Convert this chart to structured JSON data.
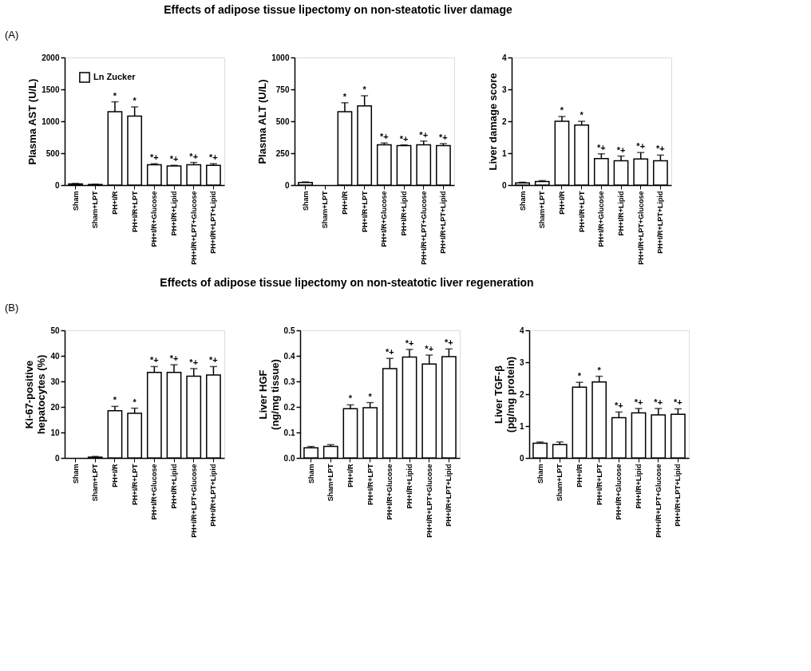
{
  "chart_data": [
    {
      "type": "bar",
      "title": "Effects of adipose tissue lipectomy on non-steatotic liver damage",
      "annotations": [
        "(A)"
      ],
      "ylabel": "Plasma AST (U/L)",
      "categories": [
        "Sham",
        "Sham+LPT",
        "PH+I/R",
        "PH+I/R+LPT",
        "PH+I/R+Glucose",
        "PH+I/R+Lipid",
        "PH+I/R+LPT+Glucose",
        "PH+I/R+LPT+Lipid"
      ],
      "series": [
        {
          "name": "Ln Zucker",
          "color": "#ffffff",
          "values": [
            20,
            10,
            1150,
            1080,
            320,
            300,
            320,
            310
          ],
          "errors": [
            5,
            3,
            155,
            145,
            15,
            10,
            35,
            25
          ],
          "value_labels": [
            null,
            null,
            "*",
            "*",
            "*+",
            "*+",
            "*+",
            "*+"
          ]
        }
      ],
      "ylim": [
        0,
        2000
      ],
      "yticks": [
        0,
        500,
        1000,
        1500,
        2000
      ],
      "grid": false,
      "legend": "top left"
    },
    {
      "type": "bar",
      "ylabel": "Plasma ALT (U/L)",
      "categories": [
        "Sham",
        "Sham+LPT",
        "PH+I/R",
        "PH+I/R+LPT",
        "PH+I/R+Glucose",
        "PH+I/R+Lipid",
        "PH+I/R+LPT+Glucose",
        "PH+I/R+LPT+Lipid"
      ],
      "series": [
        {
          "color": "#ffffff",
          "values": [
            20,
            null,
            575,
            620,
            315,
            310,
            315,
            310
          ],
          "errors": [
            5,
            null,
            70,
            80,
            15,
            5,
            30,
            15
          ],
          "value_labels": [
            null,
            null,
            "*",
            "*",
            "*+",
            "*+",
            "*+",
            "*+"
          ]
        }
      ],
      "ylim": [
        0,
        1000
      ],
      "yticks": [
        0,
        250,
        500,
        750,
        1000
      ],
      "grid": false
    },
    {
      "type": "bar",
      "ylabel": "Liver damage score",
      "categories": [
        "Sham",
        "Sham+LPT",
        "PH+I/R",
        "PH+I/R+LPT",
        "PH+I/R+Glucose",
        "PH+I/R+Lipid",
        "PH+I/R+LPT+Glucose",
        "PH+I/R+LPT+Lipid"
      ],
      "series": [
        {
          "color": "#ffffff",
          "values": [
            0.07,
            0.11,
            2.0,
            1.88,
            0.83,
            0.76,
            0.82,
            0.76
          ],
          "errors": [
            0.02,
            0.03,
            0.15,
            0.12,
            0.15,
            0.15,
            0.2,
            0.18
          ],
          "value_labels": [
            null,
            null,
            "*",
            "*",
            "*+",
            "*+",
            "*+",
            "*+"
          ]
        }
      ],
      "ylim": [
        0,
        4
      ],
      "yticks": [
        0,
        1,
        2,
        3,
        4
      ],
      "grid": false
    },
    {
      "type": "bar",
      "title": "Effects of adipose tissue lipectomy on non-steatotic liver regeneration",
      "annotations": [
        "(B)"
      ],
      "ylabel": "Ki-67-positive\nhepatocytes (%)",
      "categories": [
        "Sham",
        "Sham+LPT",
        "PH+I/R",
        "PH+I/R+LPT",
        "PH+I/R+Glucose",
        "PH+I/R+Lipid",
        "PH+I/R+LPT+Glucose",
        "PH+I/R+LPT+Lipid"
      ],
      "series": [
        {
          "name": "Ln Zucker",
          "color": "#ffffff",
          "values": [
            null,
            0.3,
            18.5,
            17.5,
            33.5,
            33.5,
            32,
            32.5
          ],
          "errors": [
            null,
            0.3,
            1.7,
            2.0,
            2.3,
            3.0,
            3.0,
            3.3
          ],
          "value_labels": [
            null,
            null,
            "*",
            "*",
            "*+",
            "*+",
            "*+",
            "*+"
          ]
        }
      ],
      "ylim": [
        0,
        50
      ],
      "yticks": [
        0,
        10,
        20,
        30,
        40,
        50
      ],
      "grid": false,
      "legend": "top left"
    },
    {
      "type": "bar",
      "ylabel": "Liver HGF\n(ng/mg tissue)",
      "categories": [
        "Sham",
        "Sham+LPT",
        "PH+I/R",
        "PH+I/R+LPT",
        "PH+I/R+Glucose",
        "PH+I/R+Lipid",
        "PH+I/R+LPT+Glucose",
        "PH+I/R+LPT+Lipid"
      ],
      "series": [
        {
          "color": "#ffffff",
          "values": [
            0.04,
            0.045,
            0.193,
            0.197,
            0.35,
            0.395,
            0.368,
            0.397
          ],
          "errors": [
            0.005,
            0.007,
            0.015,
            0.02,
            0.04,
            0.03,
            0.035,
            0.03
          ],
          "value_labels": [
            null,
            null,
            "*",
            "*",
            "*+",
            "*+",
            "*+",
            "*+"
          ]
        }
      ],
      "ylim": [
        0,
        0.5
      ],
      "yticks": [
        {
          "value": 0,
          "label": "0.0"
        },
        0.1,
        0.2,
        0.3,
        0.4,
        0.5
      ],
      "grid": false
    },
    {
      "type": "bar",
      "ylabel": "Liver TGF-β\n(pg/mg protein)",
      "categories": [
        "Sham",
        "Sham+LPT",
        "PH+I/R",
        "PH+I/R+LPT",
        "PH+I/R+Glucose",
        "PH+I/R+Lipid",
        "PH+I/R+LPT+Glucose",
        "PH+I/R+LPT+Lipid"
      ],
      "series": [
        {
          "color": "#ffffff",
          "values": [
            0.46,
            0.42,
            2.22,
            2.38,
            1.26,
            1.41,
            1.35,
            1.37
          ],
          "errors": [
            0.04,
            0.08,
            0.15,
            0.18,
            0.18,
            0.14,
            0.2,
            0.17
          ],
          "value_labels": [
            null,
            null,
            "*",
            "*",
            "*+",
            "*+",
            "*+",
            "*+"
          ]
        }
      ],
      "ylim": [
        0,
        4
      ],
      "yticks": [
        0,
        1,
        2,
        3,
        4
      ],
      "grid": false
    }
  ]
}
